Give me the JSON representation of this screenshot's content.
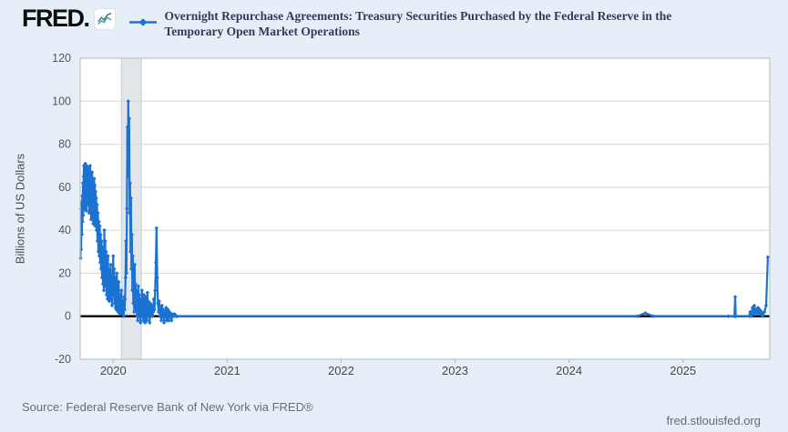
{
  "header": {
    "logo_text": "FRED.",
    "logo_icon": "line-chart-icon",
    "legend_marker": "diamond",
    "title_line1": "Overnight Repurchase Agreements: Treasury Securities Purchased by the Federal Reserve in the",
    "title_line2": "Temporary Open Market Operations"
  },
  "footer": {
    "source": "Source: Federal Reserve Bank of New York via FRED®",
    "site": "fred.stlouisfed.org"
  },
  "colors": {
    "series_blue": "#1a73d2",
    "background": "#e6eef8",
    "plot_background": "#ffffff",
    "gridline": "#d8d8d8",
    "plot_border": "#c0c0c0",
    "recession_band": "#e2e6eb",
    "recession_band_edge": "#c9ced4",
    "zero_line": "#000000",
    "tick_text": "#575757",
    "x_tick_text": "#474747"
  },
  "chart_data": {
    "type": "line",
    "title": "Overnight Repurchase Agreements: Treasury Securities Purchased by the Federal Reserve in the Temporary Open Market Operations",
    "ylabel": "Billions of US Dollars",
    "xlabel": "",
    "units": "Billions of US Dollars",
    "ylim": [
      -20,
      120
    ],
    "xlim": [
      2019.71,
      2025.762
    ],
    "y_ticks": [
      -20,
      0,
      20,
      40,
      60,
      80,
      100,
      120
    ],
    "x_ticks": [
      2020,
      2021,
      2022,
      2023,
      2024,
      2025
    ],
    "grid": "horizontal",
    "legend_position": "top",
    "marker": "diamond",
    "zero_line": 0,
    "recession_band": {
      "x0": 2020.072,
      "x1": 2020.247
    },
    "series": [
      {
        "name": "Overnight Repurchase Agreements: Treasury Securities Purchased by the Federal Reserve in the Temporary Open Market Operations",
        "color": "#1a73d2",
        "points": [
          [
            2019.713,
            27
          ],
          [
            2019.716,
            50
          ],
          [
            2019.719,
            31
          ],
          [
            2019.722,
            53
          ],
          [
            2019.725,
            38
          ],
          [
            2019.728,
            56
          ],
          [
            2019.731,
            44
          ],
          [
            2019.734,
            62
          ],
          [
            2019.737,
            47
          ],
          [
            2019.74,
            65
          ],
          [
            2019.743,
            70
          ],
          [
            2019.746,
            55
          ],
          [
            2019.749,
            68
          ],
          [
            2019.752,
            50
          ],
          [
            2019.755,
            71
          ],
          [
            2019.758,
            58
          ],
          [
            2019.761,
            66
          ],
          [
            2019.764,
            49
          ],
          [
            2019.767,
            70
          ],
          [
            2019.77,
            56
          ],
          [
            2019.773,
            67
          ],
          [
            2019.776,
            52
          ],
          [
            2019.779,
            69
          ],
          [
            2019.782,
            57
          ],
          [
            2019.785,
            64
          ],
          [
            2019.788,
            48
          ],
          [
            2019.791,
            66
          ],
          [
            2019.794,
            55
          ],
          [
            2019.797,
            70
          ],
          [
            2019.8,
            60
          ],
          [
            2019.803,
            65
          ],
          [
            2019.806,
            45
          ],
          [
            2019.809,
            63
          ],
          [
            2019.812,
            52
          ],
          [
            2019.815,
            67
          ],
          [
            2019.818,
            58
          ],
          [
            2019.821,
            62
          ],
          [
            2019.824,
            43
          ],
          [
            2019.827,
            60
          ],
          [
            2019.83,
            50
          ],
          [
            2019.833,
            64
          ],
          [
            2019.836,
            55
          ],
          [
            2019.839,
            61
          ],
          [
            2019.842,
            42
          ],
          [
            2019.845,
            58
          ],
          [
            2019.848,
            46
          ],
          [
            2019.851,
            55
          ],
          [
            2019.854,
            40
          ],
          [
            2019.858,
            52
          ],
          [
            2019.862,
            35
          ],
          [
            2019.866,
            48
          ],
          [
            2019.87,
            30
          ],
          [
            2019.874,
            44
          ],
          [
            2019.878,
            28
          ],
          [
            2019.882,
            42
          ],
          [
            2019.886,
            25
          ],
          [
            2019.89,
            38
          ],
          [
            2019.894,
            22
          ],
          [
            2019.898,
            35
          ],
          [
            2019.902,
            18
          ],
          [
            2019.906,
            32
          ],
          [
            2019.91,
            15
          ],
          [
            2019.914,
            28
          ],
          [
            2019.918,
            12
          ],
          [
            2019.922,
            40
          ],
          [
            2019.926,
            20
          ],
          [
            2019.93,
            35
          ],
          [
            2019.934,
            14
          ],
          [
            2019.938,
            30
          ],
          [
            2019.942,
            10
          ],
          [
            2019.946,
            25
          ],
          [
            2019.95,
            8
          ],
          [
            2019.954,
            28
          ],
          [
            2019.958,
            12
          ],
          [
            2019.962,
            22
          ],
          [
            2019.966,
            7
          ],
          [
            2019.97,
            18
          ],
          [
            2019.974,
            10
          ],
          [
            2019.978,
            24
          ],
          [
            2019.982,
            8
          ],
          [
            2019.986,
            15
          ],
          [
            2019.99,
            5
          ],
          [
            2019.994,
            12
          ],
          [
            2020.0,
            28
          ],
          [
            2020.004,
            10
          ],
          [
            2020.008,
            22
          ],
          [
            2020.012,
            6
          ],
          [
            2020.016,
            18
          ],
          [
            2020.02,
            4
          ],
          [
            2020.024,
            14
          ],
          [
            2020.028,
            3
          ],
          [
            2020.032,
            20
          ],
          [
            2020.036,
            6
          ],
          [
            2020.04,
            12
          ],
          [
            2020.044,
            2
          ],
          [
            2020.048,
            16
          ],
          [
            2020.052,
            5
          ],
          [
            2020.056,
            10
          ],
          [
            2020.06,
            1
          ],
          [
            2020.064,
            8
          ],
          [
            2020.068,
            3
          ],
          [
            2020.072,
            12
          ],
          [
            2020.076,
            2
          ],
          [
            2020.08,
            7
          ],
          [
            2020.084,
            1
          ],
          [
            2020.088,
            5
          ],
          [
            2020.092,
            0
          ],
          [
            2020.096,
            9
          ],
          [
            2020.1,
            3
          ],
          [
            2020.104,
            8
          ],
          [
            2020.108,
            18
          ],
          [
            2020.112,
            35
          ],
          [
            2020.116,
            20
          ],
          [
            2020.12,
            50
          ],
          [
            2020.124,
            88
          ],
          [
            2020.128,
            65
          ],
          [
            2020.132,
            100
          ],
          [
            2020.136,
            78
          ],
          [
            2020.14,
            92
          ],
          [
            2020.144,
            48
          ],
          [
            2020.148,
            62
          ],
          [
            2020.152,
            30
          ],
          [
            2020.156,
            55
          ],
          [
            2020.16,
            22
          ],
          [
            2020.164,
            38
          ],
          [
            2020.168,
            12
          ],
          [
            2020.172,
            28
          ],
          [
            2020.176,
            6
          ],
          [
            2020.18,
            18
          ],
          [
            2020.184,
            2
          ],
          [
            2020.188,
            24
          ],
          [
            2020.192,
            8
          ],
          [
            2020.196,
            15
          ],
          [
            2020.2,
            3
          ],
          [
            2020.204,
            12
          ],
          [
            2020.208,
            0
          ],
          [
            2020.212,
            9
          ],
          [
            2020.216,
            -2
          ],
          [
            2020.22,
            14
          ],
          [
            2020.224,
            4
          ],
          [
            2020.228,
            10
          ],
          [
            2020.232,
            0
          ],
          [
            2020.236,
            6
          ],
          [
            2020.24,
            -3
          ],
          [
            2020.244,
            8
          ],
          [
            2020.248,
            2
          ],
          [
            2020.252,
            12
          ],
          [
            2020.256,
            0
          ],
          [
            2020.26,
            8
          ],
          [
            2020.264,
            -2
          ],
          [
            2020.268,
            10
          ],
          [
            2020.272,
            1
          ],
          [
            2020.276,
            6
          ],
          [
            2020.28,
            -3
          ],
          [
            2020.284,
            9
          ],
          [
            2020.288,
            0
          ],
          [
            2020.292,
            5
          ],
          [
            2020.296,
            -2
          ],
          [
            2020.3,
            11
          ],
          [
            2020.304,
            2
          ],
          [
            2020.308,
            7
          ],
          [
            2020.312,
            0
          ],
          [
            2020.316,
            4
          ],
          [
            2020.32,
            -3
          ],
          [
            2020.324,
            6
          ],
          [
            2020.328,
            0
          ],
          [
            2020.332,
            3
          ],
          [
            2020.336,
            1
          ],
          [
            2020.34,
            5
          ],
          [
            2020.344,
            0
          ],
          [
            2020.35,
            2
          ],
          [
            2020.356,
            8
          ],
          [
            2020.362,
            3
          ],
          [
            2020.368,
            12
          ],
          [
            2020.374,
            25
          ],
          [
            2020.38,
            41
          ],
          [
            2020.386,
            18
          ],
          [
            2020.392,
            6
          ],
          [
            2020.398,
            2
          ],
          [
            2020.404,
            7
          ],
          [
            2020.41,
            0
          ],
          [
            2020.416,
            4
          ],
          [
            2020.422,
            -2
          ],
          [
            2020.428,
            5
          ],
          [
            2020.434,
            0
          ],
          [
            2020.44,
            3
          ],
          [
            2020.446,
            -3
          ],
          [
            2020.452,
            2
          ],
          [
            2020.458,
            0
          ],
          [
            2020.464,
            4
          ],
          [
            2020.47,
            -2
          ],
          [
            2020.476,
            1
          ],
          [
            2020.482,
            3
          ],
          [
            2020.488,
            -2
          ],
          [
            2020.494,
            2
          ],
          [
            2020.5,
            0
          ],
          [
            2020.506,
            1
          ],
          [
            2020.512,
            -2
          ],
          [
            2020.52,
            1
          ],
          [
            2020.53,
            0
          ],
          [
            2020.54,
            1
          ],
          [
            2020.55,
            0
          ],
          [
            2020.56,
            0
          ],
          [
            2024.6,
            0
          ],
          [
            2024.67,
            1.5
          ],
          [
            2024.74,
            0
          ],
          [
            2025.4,
            0
          ],
          [
            2025.452,
            0
          ],
          [
            2025.458,
            9
          ],
          [
            2025.464,
            0
          ],
          [
            2025.58,
            0
          ],
          [
            2025.59,
            2
          ],
          [
            2025.6,
            0
          ],
          [
            2025.61,
            4
          ],
          [
            2025.618,
            1
          ],
          [
            2025.626,
            5
          ],
          [
            2025.634,
            2
          ],
          [
            2025.642,
            3
          ],
          [
            2025.65,
            1
          ],
          [
            2025.658,
            4
          ],
          [
            2025.666,
            2
          ],
          [
            2025.674,
            3
          ],
          [
            2025.682,
            1
          ],
          [
            2025.69,
            2
          ],
          [
            2025.7,
            0
          ],
          [
            2025.715,
            2
          ],
          [
            2025.73,
            5
          ],
          [
            2025.745,
            27.5
          ]
        ]
      }
    ]
  }
}
